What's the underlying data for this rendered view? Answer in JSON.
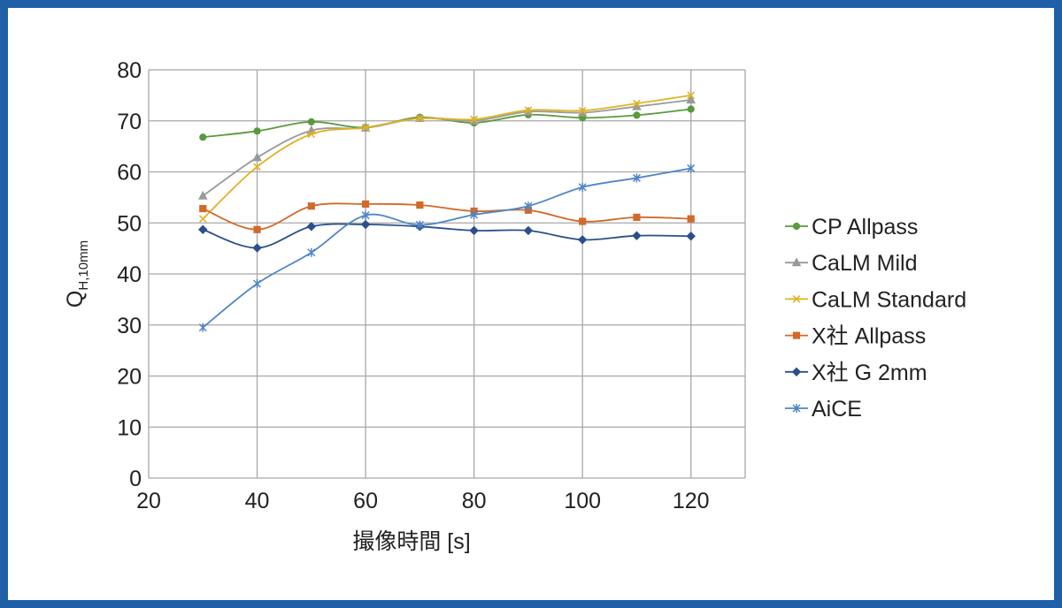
{
  "chart_data": {
    "type": "line",
    "title": "",
    "xlabel": "撮像時間 [s]",
    "ylabel_main": "Q",
    "ylabel_sub": "H,10mm",
    "xlim": [
      20,
      130
    ],
    "ylim": [
      0,
      80
    ],
    "xticks": [
      20,
      40,
      60,
      80,
      100,
      120
    ],
    "yticks": [
      0,
      10,
      20,
      30,
      40,
      50,
      60,
      70,
      80
    ],
    "grid": true,
    "legend_position": "right",
    "x": [
      30,
      40,
      50,
      60,
      70,
      80,
      90,
      100,
      110,
      120
    ],
    "series": [
      {
        "name": "CP Allpass",
        "color": "#5a9a3c",
        "marker": "circle",
        "values": [
          66.8,
          68.0,
          69.8,
          68.7,
          70.7,
          69.6,
          71.2,
          70.6,
          71.1,
          72.3
        ]
      },
      {
        "name": "CaLM Mild",
        "color": "#9a9a9a",
        "marker": "triangle",
        "values": [
          55.3,
          62.8,
          68.1,
          68.6,
          70.5,
          70.0,
          71.8,
          71.6,
          72.8,
          74.1
        ]
      },
      {
        "name": "CaLM Standard",
        "color": "#e0b321",
        "marker": "x",
        "values": [
          50.8,
          61.0,
          67.4,
          68.7,
          70.5,
          70.3,
          72.1,
          72.0,
          73.4,
          75.0
        ]
      },
      {
        "name": "X社 Allpass",
        "color": "#d2692a",
        "marker": "square",
        "values": [
          52.8,
          48.7,
          53.3,
          53.7,
          53.5,
          52.3,
          52.5,
          50.3,
          51.1,
          50.8
        ]
      },
      {
        "name": "X社 G 2mm",
        "color": "#2a4f8c",
        "marker": "diamond",
        "values": [
          48.7,
          45.1,
          49.3,
          49.7,
          49.3,
          48.5,
          48.5,
          46.7,
          47.5,
          47.4
        ]
      },
      {
        "name": "AiCE",
        "color": "#4f86c6",
        "marker": "star",
        "values": [
          29.5,
          38.1,
          44.2,
          51.5,
          49.6,
          51.6,
          53.3,
          57.0,
          58.8,
          60.7
        ]
      }
    ]
  }
}
